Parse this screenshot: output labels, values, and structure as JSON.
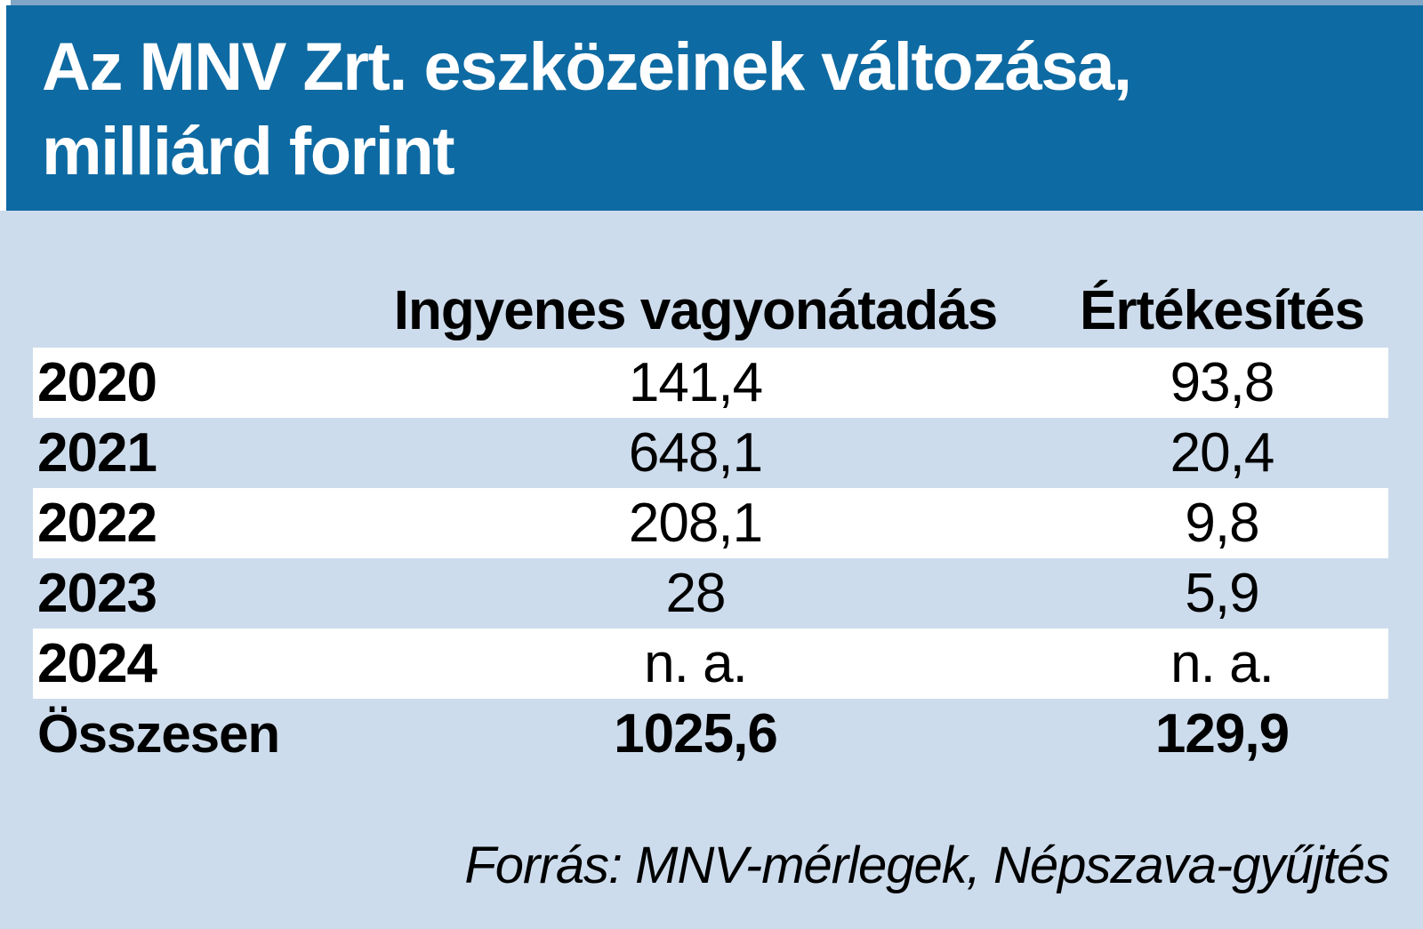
{
  "title": {
    "line1": "Az MNV Zrt. eszközeinek változása,",
    "line2": "milliárd forint"
  },
  "table": {
    "headers": {
      "transfer": "Ingyenes vagyonátadás",
      "sales": "Értékesítés"
    },
    "rows": [
      {
        "year": "2020",
        "transfer": "141,4",
        "sales": "93,8"
      },
      {
        "year": "2021",
        "transfer": "648,1",
        "sales": "20,4"
      },
      {
        "year": "2022",
        "transfer": "208,1",
        "sales": "9,8"
      },
      {
        "year": "2023",
        "transfer": "28",
        "sales": "5,9"
      },
      {
        "year": "2024",
        "transfer": "n. a.",
        "sales": "n. a."
      }
    ],
    "total": {
      "year": "Összesen",
      "transfer": "1025,6",
      "sales": "129,9"
    }
  },
  "footer": {
    "source": "Forrás: MNV-mérlegek, Népszava-gyűjtés"
  },
  "colors": {
    "banner_blue": "#0e6aa2",
    "background_light_blue": "#cddcec",
    "row_white": "#ffffff",
    "top_strip_blue": "#7fa6c6",
    "title_text": "#ffffff",
    "body_text": "#000000"
  },
  "chart_data": {
    "type": "table",
    "title": "Az MNV Zrt. eszközeinek változása, milliárd forint",
    "categories": [
      "2020",
      "2021",
      "2022",
      "2023",
      "2024",
      "Összesen"
    ],
    "series": [
      {
        "name": "Ingyenes vagyonátadás",
        "values": [
          141.4,
          648.1,
          208.1,
          28,
          null,
          1025.6
        ],
        "display": [
          "141,4",
          "648,1",
          "208,1",
          "28",
          "n. a.",
          "1025,6"
        ]
      },
      {
        "name": "Értékesítés",
        "values": [
          93.8,
          20.4,
          9.8,
          5.9,
          null,
          129.9
        ],
        "display": [
          "93,8",
          "20,4",
          "9,8",
          "5,9",
          "n. a.",
          "129,9"
        ]
      }
    ],
    "unit": "milliárd forint",
    "missing_value_label": "n. a.",
    "source": "Forrás: MNV-mérlegek, Népszava-gyűjtés"
  }
}
